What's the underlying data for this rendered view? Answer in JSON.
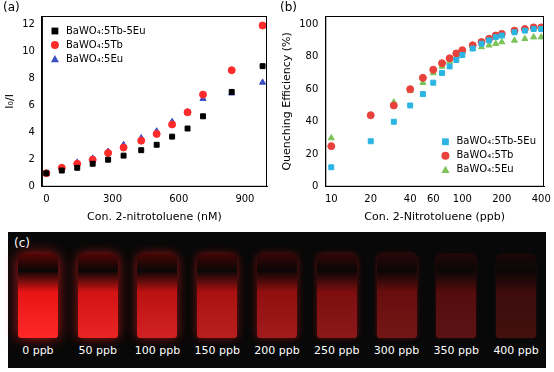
{
  "chart_data": [
    {
      "type": "scatter",
      "title": "(a)",
      "x_label": "Con. 2-nitrotoluene (nM)",
      "y_label": "I₀/I",
      "x": [
        0,
        70,
        140,
        210,
        280,
        350,
        430,
        500,
        570,
        640,
        710,
        840,
        980
      ],
      "series": [
        {
          "name": "BaWO₄:5Tb-5Eu",
          "color": "#000000",
          "marker": "square",
          "values": [
            1.0,
            1.2,
            1.4,
            1.7,
            2.0,
            2.3,
            2.7,
            3.1,
            3.7,
            4.3,
            5.2,
            7.0,
            8.9
          ]
        },
        {
          "name": "BaWO₄:5Tb",
          "color": "#ff2a2a",
          "marker": "circle",
          "values": [
            1.0,
            1.4,
            1.7,
            2.0,
            2.5,
            2.9,
            3.4,
            3.9,
            4.6,
            5.5,
            6.8,
            8.6,
            11.9
          ]
        },
        {
          "name": "BaWO₄:5Eu",
          "color": "#3b4fc4",
          "marker": "triangle",
          "values": [
            1.0,
            1.4,
            1.8,
            2.1,
            2.6,
            3.1,
            3.6,
            4.1,
            4.8,
            5.5,
            6.5,
            6.9,
            7.7
          ]
        }
      ],
      "xlim": [
        -20,
        1000
      ],
      "xticks": [
        0,
        300,
        600,
        900
      ],
      "ylim": [
        0,
        12.6
      ],
      "yticks": [
        0,
        2,
        4,
        6,
        8,
        10,
        12
      ],
      "grid": false,
      "legend": "upper left"
    },
    {
      "type": "scatter",
      "title": "(b)",
      "log": "x",
      "x_label": "Con. 2-Nitrotoluene (ppb)",
      "y_label": "Quenching Efficiency (%)",
      "x": [
        10,
        20,
        30,
        40,
        50,
        60,
        70,
        80,
        90,
        100,
        120,
        140,
        160,
        180,
        200,
        250,
        300,
        350,
        400
      ],
      "series": [
        {
          "name": "BaWO₄:5Tb-5Eu",
          "color": "#2bb5e3",
          "marker": "square",
          "values": [
            12,
            28,
            40,
            50,
            57,
            64,
            70,
            74,
            78,
            81,
            85,
            88,
            90,
            92,
            93,
            95,
            96,
            97,
            97
          ]
        },
        {
          "name": "BaWO₄:5Tb",
          "color": "#e8413c",
          "marker": "circle",
          "values": [
            25,
            44,
            50,
            60,
            67,
            72,
            76,
            79,
            82,
            84,
            87,
            89,
            91,
            93,
            94,
            96,
            97,
            98,
            98
          ]
        },
        {
          "name": "BaWO₄:5Eu",
          "color": "#7cc35a",
          "marker": "triangle",
          "values": [
            30,
            44,
            52,
            59,
            64,
            70,
            74,
            77,
            80,
            83,
            85,
            86,
            87,
            88,
            89,
            90,
            91,
            92,
            92
          ]
        }
      ],
      "xlim": [
        9,
        420
      ],
      "xticks": [
        10,
        20,
        40,
        60,
        100,
        200,
        400
      ],
      "ylim": [
        0,
        105
      ],
      "yticks": [
        0,
        20,
        40,
        60,
        80,
        100
      ],
      "grid": false,
      "legend": "lower right"
    }
  ],
  "image_panel": {
    "title": "(c)",
    "captions": [
      "0 ppb",
      "50 ppb",
      "100 ppb",
      "150 ppb",
      "200 ppb",
      "250 ppb",
      "300 ppb",
      "350 ppb",
      "400 ppb"
    ]
  }
}
